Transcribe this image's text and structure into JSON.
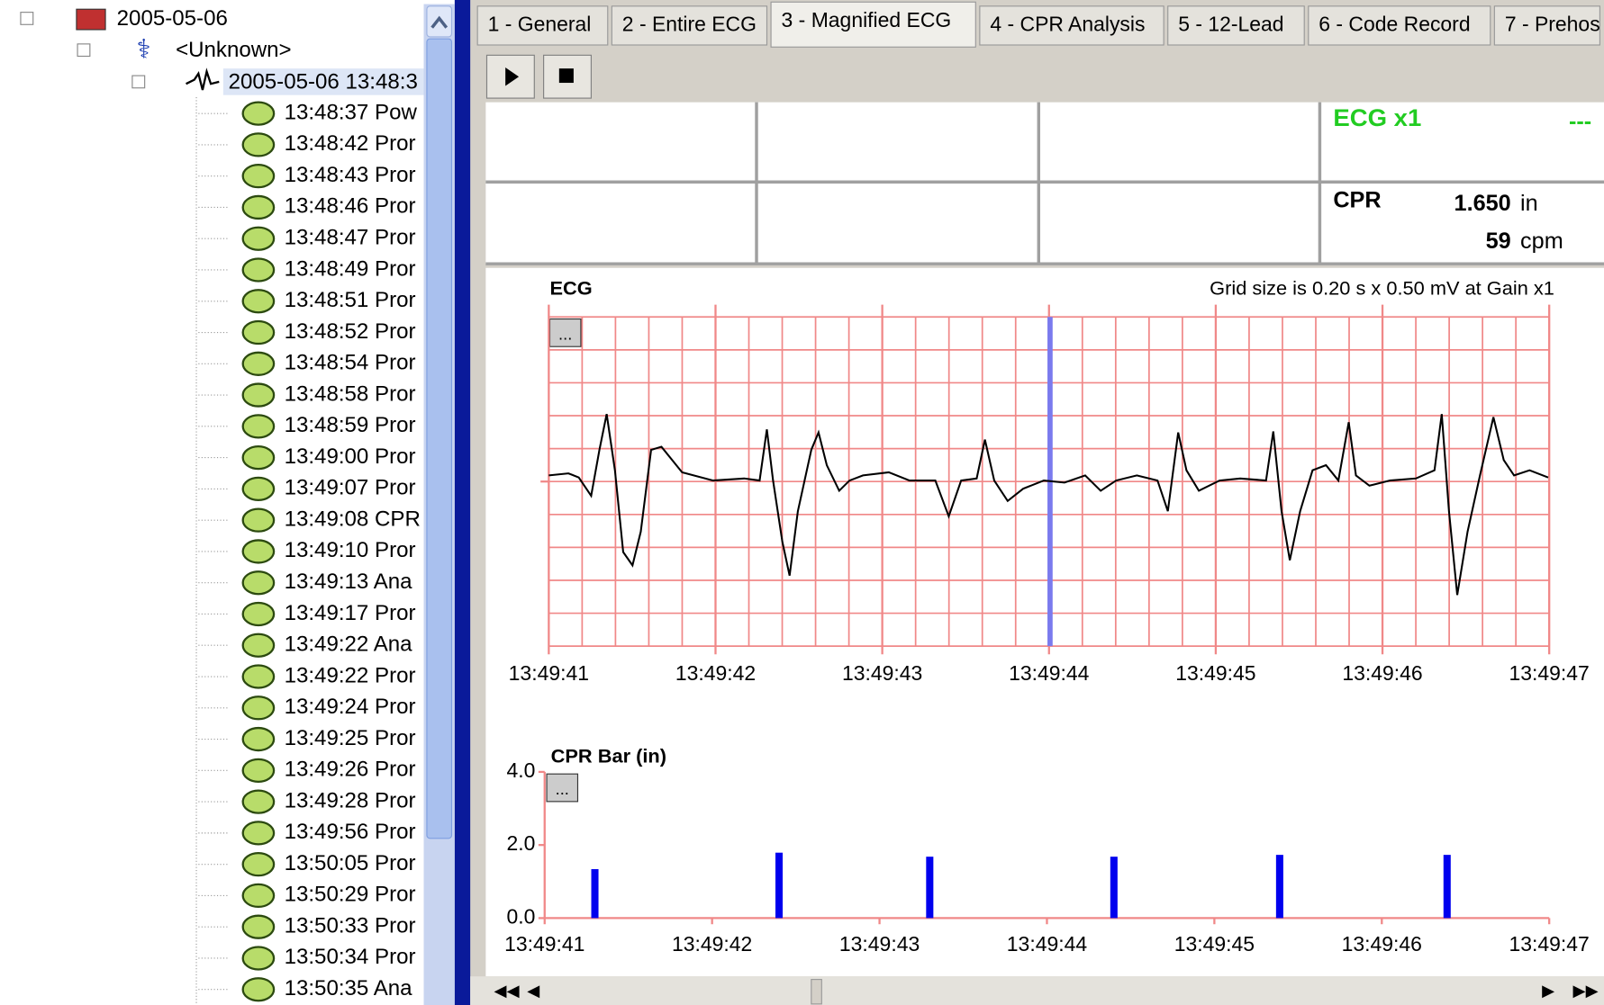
{
  "tree": {
    "root": "2005-05-06",
    "patient": "<Unknown>",
    "case": "2005-05-06 13:48:3",
    "events": [
      "13:48:37 Pow",
      "13:48:42 Pror",
      "13:48:43 Pror",
      "13:48:46 Pror",
      "13:48:47 Pror",
      "13:48:49 Pror",
      "13:48:51 Pror",
      "13:48:52 Pror",
      "13:48:54 Pror",
      "13:48:58 Pror",
      "13:48:59 Pror",
      "13:49:00 Pror",
      "13:49:07 Pror",
      "13:49:08 CPR",
      "13:49:10 Pror",
      "13:49:13 Ana",
      "13:49:17 Pror",
      "13:49:22 Ana",
      "13:49:22 Pror",
      "13:49:24 Pror",
      "13:49:25 Pror",
      "13:49:26 Pror",
      "13:49:28 Pror",
      "13:49:56 Pror",
      "13:50:05 Pror",
      "13:50:29 Pror",
      "13:50:33 Pror",
      "13:50:34 Pror",
      "13:50:35 Ana"
    ]
  },
  "tabs": [
    "1 - General",
    "2 - Entire ECG",
    "3 - Magnified ECG",
    "4 - CPR Analysis",
    "5 - 12-Lead",
    "6 - Code Record",
    "7 - Prehos"
  ],
  "panel": {
    "ecg_label": "ECG x1",
    "ecg_value": "---",
    "cpr_label": "CPR",
    "depth": "1.650",
    "depth_unit": "in",
    "rate": "59",
    "rate_unit": "cpm"
  },
  "chart_data": [
    {
      "type": "line",
      "title": "ECG",
      "subtitle": "Grid size is 0.20 s x 0.50 mV at Gain x1",
      "xlim": [
        41,
        47
      ],
      "xticks": [
        {
          "value": 41,
          "label": "13:49:41"
        },
        {
          "value": 42,
          "label": "13:49:42"
        },
        {
          "value": 43,
          "label": "13:49:43"
        },
        {
          "value": 44,
          "label": "13:49:44"
        },
        {
          "value": 45,
          "label": "13:49:45"
        },
        {
          "value": 46,
          "label": "13:49:46"
        },
        {
          "value": 47,
          "label": "13:49:47"
        }
      ]
    },
    {
      "type": "bar",
      "title": "CPR Bar (in)",
      "color": "#0000ee",
      "x": [
        41.3,
        42.4,
        43.3,
        44.4,
        45.39,
        46.39
      ],
      "values": [
        1.34,
        1.79,
        1.68,
        1.68,
        1.73,
        1.73
      ],
      "xlim": [
        41,
        47
      ],
      "ylim": [
        0,
        4
      ],
      "yticks": [
        {
          "value": 0,
          "label": "0.0"
        },
        {
          "value": 2,
          "label": "2.0"
        },
        {
          "value": 4,
          "label": "4.0"
        }
      ],
      "xticks": [
        {
          "value": 41,
          "label": "13:49:41"
        },
        {
          "value": 42,
          "label": "13:49:42"
        },
        {
          "value": 43,
          "label": "13:49:43"
        },
        {
          "value": 44,
          "label": "13:49:44"
        },
        {
          "value": 45,
          "label": "13:49:45"
        },
        {
          "value": 46,
          "label": "13:49:46"
        },
        {
          "value": 47,
          "label": "13:49:47"
        }
      ]
    }
  ]
}
